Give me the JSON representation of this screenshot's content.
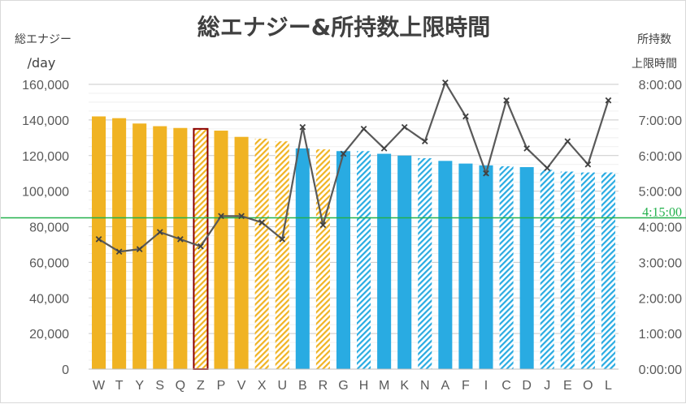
{
  "chart_data": {
    "type": "bar",
    "title": "総エナジー&所持数上限時間",
    "left_axis_label": [
      "総エナジー",
      "/day"
    ],
    "right_axis_label": [
      "所持数",
      "上限時間"
    ],
    "categories": [
      "W",
      "T",
      "Y",
      "S",
      "Q",
      "Z",
      "P",
      "V",
      "X",
      "U",
      "B",
      "R",
      "G",
      "H",
      "M",
      "K",
      "N",
      "A",
      "F",
      "I",
      "C",
      "D",
      "J",
      "E",
      "O",
      "L"
    ],
    "left_axis": {
      "ylim": [
        0,
        160000
      ],
      "ticks": [
        0,
        20000,
        40000,
        60000,
        80000,
        100000,
        120000,
        140000,
        160000
      ],
      "tick_labels": [
        "0",
        "20,000",
        "40,000",
        "60,000",
        "80,000",
        "100,000",
        "120,000",
        "140,000",
        "160,000"
      ]
    },
    "right_axis": {
      "ylim": [
        0,
        8
      ],
      "ticks": [
        0,
        1,
        2,
        3,
        4,
        5,
        6,
        7,
        8
      ],
      "tick_labels": [
        "0:00:00",
        "1:00:00",
        "2:00:00",
        "3:00:00",
        "4:00:00",
        "5:00:00",
        "6:00:00",
        "7:00:00",
        "8:00:00"
      ]
    },
    "grid": true,
    "series": [
      {
        "type": "bar",
        "values": [
          142000,
          141000,
          138000,
          136500,
          135500,
          135000,
          134000,
          130500,
          129500,
          128000,
          124000,
          123500,
          122500,
          122500,
          121000,
          120000,
          118500,
          117000,
          115500,
          114500,
          114000,
          113500,
          112000,
          111000,
          110500,
          110500
        ],
        "colors": [
          "#f0b323",
          "#f0b323",
          "#f0b323",
          "#f0b323",
          "#f0b323",
          "#f0b323",
          "#f0b323",
          "#f0b323",
          "#f0b323",
          "#f0b323",
          "#29abe2",
          "#f0b323",
          "#29abe2",
          "#29abe2",
          "#29abe2",
          "#29abe2",
          "#29abe2",
          "#29abe2",
          "#29abe2",
          "#29abe2",
          "#29abe2",
          "#29abe2",
          "#29abe2",
          "#29abe2",
          "#29abe2",
          "#29abe2"
        ],
        "patterns": [
          "solid",
          "solid",
          "solid",
          "solid",
          "solid",
          "hatch-outlined",
          "solid",
          "solid",
          "hatch",
          "hatch",
          "solid",
          "hatch",
          "solid",
          "hatch",
          "solid",
          "solid",
          "hatch",
          "solid",
          "solid",
          "solid",
          "hatch",
          "solid",
          "hatch",
          "hatch",
          "hatch",
          "hatch"
        ]
      },
      {
        "type": "line",
        "axis": "right",
        "color": "#595959",
        "marker": "x",
        "values": [
          3.65,
          3.3,
          3.37,
          3.85,
          3.65,
          3.45,
          4.3,
          4.3,
          4.12,
          3.65,
          6.8,
          4.05,
          6.05,
          6.75,
          6.2,
          6.8,
          6.4,
          8.05,
          7.1,
          5.5,
          7.55,
          6.2,
          5.65,
          6.4,
          5.75,
          7.55
        ]
      }
    ],
    "reference_line": {
      "label": "4:15:00",
      "value": 4.25,
      "axis": "right",
      "color": "#22b14c"
    },
    "outlined_bar_color": "#8b0000"
  }
}
